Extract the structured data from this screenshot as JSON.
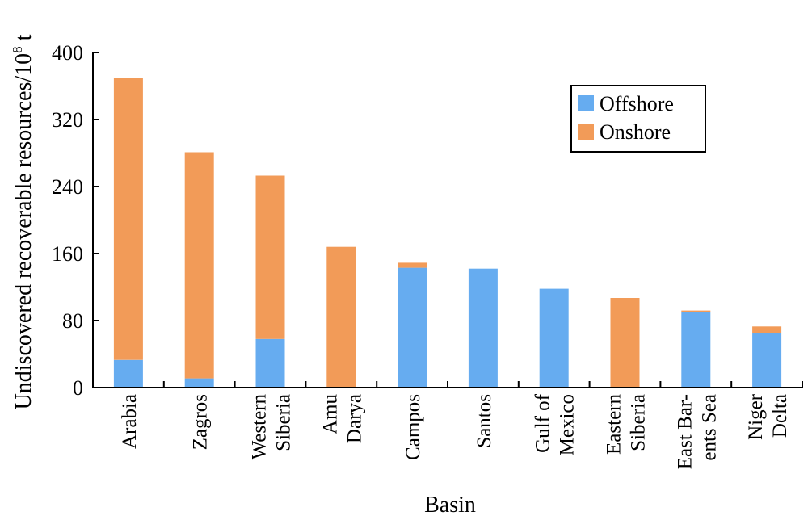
{
  "chart_data": {
    "type": "bar",
    "stacked": true,
    "title": "",
    "xlabel": "Basin",
    "ylabel": "Undiscovered recoverable resources/10",
    "ylabel_sup": "8",
    "ylabel_suffix": " t",
    "ylim": [
      0,
      400
    ],
    "yticks": [
      0,
      80,
      160,
      240,
      320,
      400
    ],
    "grid": false,
    "legend_position": "top-right",
    "categories": [
      [
        "Arabia"
      ],
      [
        "Zagros"
      ],
      [
        "Western",
        "Siberia"
      ],
      [
        "Amu",
        "Darya"
      ],
      [
        "Campos"
      ],
      [
        "Santos"
      ],
      [
        "Gulf of",
        "Mexico"
      ],
      [
        "Eastern",
        "Siberia"
      ],
      [
        "East Bar-",
        "ents Sea"
      ],
      [
        "Niger",
        "Delta"
      ]
    ],
    "series": [
      {
        "name": "Offshore",
        "color": "#66acf0",
        "values": [
          33,
          11,
          58,
          0,
          143,
          142,
          118,
          0,
          90,
          65
        ]
      },
      {
        "name": "Onshore",
        "color": "#f29b58",
        "values": [
          337,
          270,
          195,
          168,
          6,
          0,
          0,
          107,
          2,
          8
        ]
      }
    ]
  }
}
